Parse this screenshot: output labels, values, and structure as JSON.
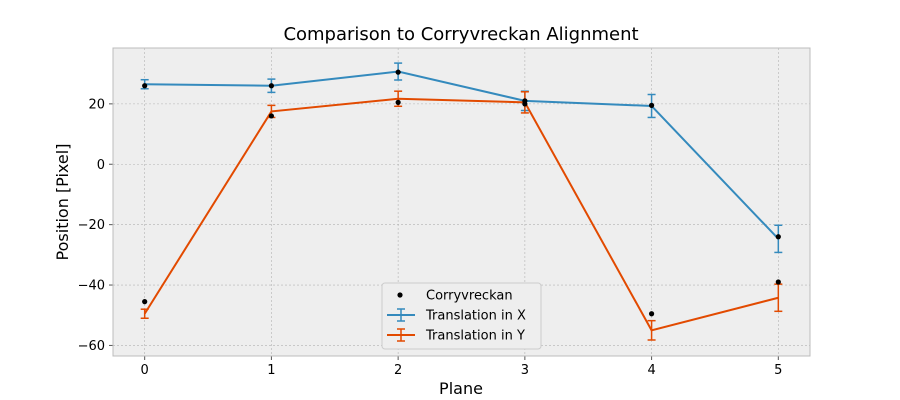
{
  "chart_data": {
    "type": "line",
    "title": "Comparison to Corryvreckan Alignment",
    "xlabel": "Plane",
    "ylabel": "Position [Pixel]",
    "x": [
      0,
      1,
      2,
      3,
      4,
      5
    ],
    "xlim": [
      -0.25,
      5.25
    ],
    "ylim": [
      -63.5,
      38.5
    ],
    "xticks": [
      0,
      1,
      2,
      3,
      4,
      5
    ],
    "yticks": [
      -60,
      -40,
      -20,
      0,
      20
    ],
    "grid": true,
    "legend_position": "lower-center",
    "series": [
      {
        "name": "Translation in X",
        "kind": "errorbar-line",
        "color": "#348ABD",
        "values": [
          26.5,
          26.0,
          30.7,
          21.0,
          19.3,
          -24.7
        ],
        "errors": [
          1.5,
          2.2,
          2.8,
          3.2,
          3.8,
          4.5
        ]
      },
      {
        "name": "Translation in Y",
        "kind": "errorbar-line",
        "color": "#E24A00",
        "values": [
          -49.5,
          17.5,
          21.7,
          20.5,
          -55.0,
          -44.2
        ],
        "errors": [
          1.5,
          2.0,
          2.5,
          3.5,
          3.2,
          4.5
        ]
      },
      {
        "name": "Corryvreckan",
        "kind": "scatter",
        "color": "#000000",
        "values": [
          -45.5,
          16.0,
          20.5,
          21.0,
          -49.5,
          -39.0
        ],
        "values_x_series": [
          26.0,
          26.0,
          30.5,
          20.0,
          19.5,
          -24.0
        ]
      }
    ]
  }
}
